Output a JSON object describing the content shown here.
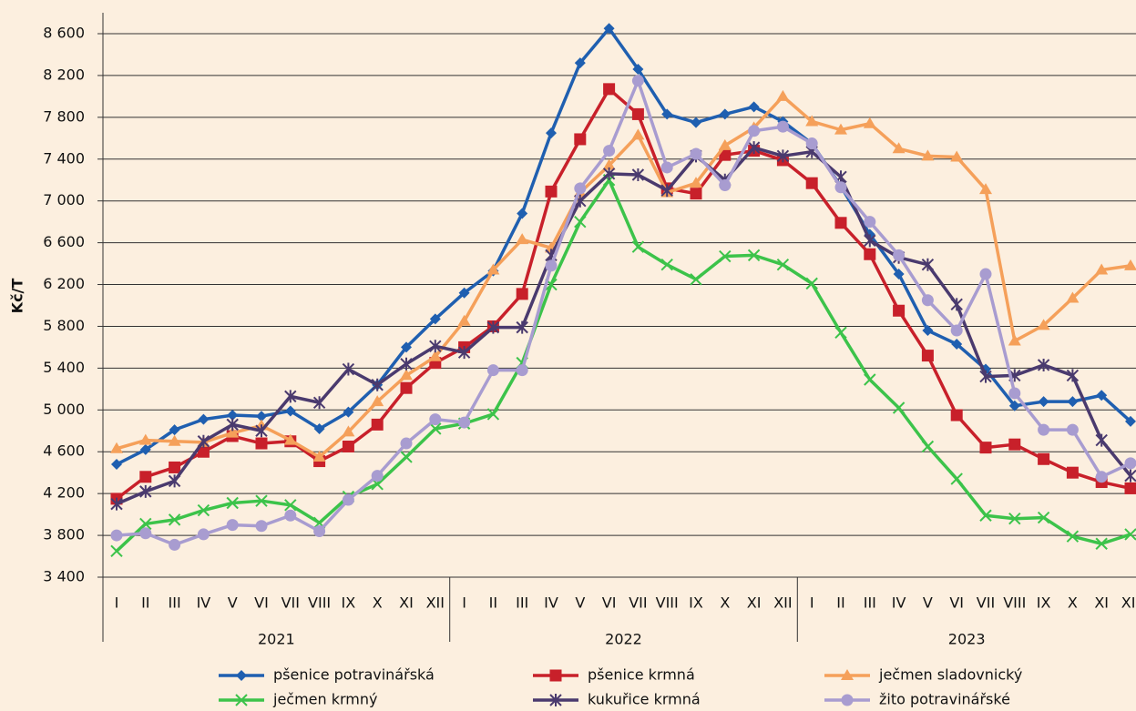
{
  "chart_data": {
    "type": "line",
    "y_label": "Kč/T",
    "categories": [
      "I",
      "II",
      "III",
      "IV",
      "V",
      "VI",
      "VII",
      "VIII",
      "IX",
      "X",
      "XI",
      "XII",
      "I",
      "II",
      "III",
      "IV",
      "V",
      "VI",
      "VII",
      "VIII",
      "IX",
      "X",
      "XI",
      "XII",
      "I",
      "II",
      "III",
      "IV",
      "V",
      "VI",
      "VII",
      "VIII",
      "IX",
      "X",
      "XI",
      "XII"
    ],
    "years": [
      "2021",
      "2022",
      "2023"
    ],
    "ylim": [
      3400,
      8600
    ],
    "yticks": [
      {
        "value": 3400,
        "label": "3 400"
      },
      {
        "value": 3800,
        "label": "3 800"
      },
      {
        "value": 4200,
        "label": "4 200"
      },
      {
        "value": 4600,
        "label": "4 600"
      },
      {
        "value": 5000,
        "label": "5 000"
      },
      {
        "value": 5400,
        "label": "5 400"
      },
      {
        "value": 5800,
        "label": "5 800"
      },
      {
        "value": 6200,
        "label": "6 200"
      },
      {
        "value": 6600,
        "label": "6 600"
      },
      {
        "value": 7000,
        "label": "7 000"
      },
      {
        "value": 7400,
        "label": "7 400"
      },
      {
        "value": 7800,
        "label": "7 800"
      },
      {
        "value": 8200,
        "label": "8 200"
      },
      {
        "value": 8600,
        "label": "8 600"
      }
    ],
    "grid": true,
    "legend": "bottom",
    "series": [
      {
        "name": "pšenice potravinářská",
        "color": "#1f5fb0",
        "marker": "diamond",
        "values": [
          4480,
          4620,
          4810,
          4910,
          4950,
          4940,
          4990,
          4820,
          4980,
          5240,
          5600,
          5870,
          6120,
          6330,
          6880,
          7650,
          8320,
          8650,
          8260,
          7830,
          7750,
          7830,
          7900,
          7760,
          7550,
          7140,
          6680,
          6300,
          5760,
          5630,
          5390,
          5040,
          5080,
          5080,
          5140,
          4890
        ]
      },
      {
        "name": "pšenice krmná",
        "color": "#c8202a",
        "marker": "square",
        "values": [
          4150,
          4360,
          4450,
          4600,
          4750,
          4680,
          4700,
          4510,
          4650,
          4860,
          5210,
          5450,
          5600,
          5800,
          6110,
          7090,
          7590,
          8070,
          7830,
          7120,
          7070,
          7440,
          7480,
          7390,
          7170,
          6790,
          6490,
          5950,
          5520,
          4950,
          4640,
          4670,
          4530,
          4400,
          4310,
          4250
        ]
      },
      {
        "name": "ječmen sladovnický",
        "color": "#f5a05a",
        "marker": "triangle",
        "values": [
          4630,
          4710,
          4700,
          4690,
          4780,
          4850,
          4710,
          4550,
          4790,
          5080,
          5330,
          5510,
          5850,
          6340,
          6630,
          6550,
          7080,
          7340,
          7630,
          7080,
          7170,
          7530,
          7700,
          8000,
          7760,
          7680,
          7740,
          7500,
          7430,
          7420,
          7110,
          5660,
          5810,
          6070,
          6340,
          6380
        ]
      },
      {
        "name": "ječmen krmný",
        "color": "#3cc34a",
        "marker": "x",
        "values": [
          3650,
          3910,
          3950,
          4040,
          4110,
          4130,
          4090,
          3920,
          4170,
          4290,
          4550,
          4820,
          4870,
          4960,
          5450,
          6200,
          6800,
          7200,
          6560,
          6390,
          6250,
          6470,
          6480,
          6390,
          6210,
          5740,
          5290,
          5020,
          4650,
          4340,
          3990,
          3960,
          3970,
          3790,
          3720,
          3810
        ]
      },
      {
        "name": "kukuřice krmná",
        "color": "#4a3a6e",
        "marker": "asterisk",
        "values": [
          4100,
          4220,
          4320,
          4700,
          4860,
          4800,
          5130,
          5070,
          5390,
          5240,
          5440,
          5610,
          5550,
          5790,
          5790,
          6480,
          7000,
          7260,
          7250,
          7100,
          7430,
          7200,
          7510,
          7430,
          7470,
          7230,
          6620,
          6460,
          6390,
          6010,
          5320,
          5330,
          5430,
          5330,
          4710,
          4370
        ]
      },
      {
        "name": "žito potravinářské",
        "color": "#a89cd0",
        "marker": "circle",
        "values": [
          3800,
          3820,
          3710,
          3810,
          3900,
          3890,
          3990,
          3840,
          4140,
          4370,
          4680,
          4910,
          4880,
          5380,
          5380,
          6380,
          7120,
          7480,
          8150,
          7320,
          7450,
          7150,
          7670,
          7710,
          7550,
          7130,
          6800,
          6480,
          6050,
          5760,
          6300,
          5160,
          4810,
          4810,
          4360,
          4490
        ]
      }
    ]
  }
}
